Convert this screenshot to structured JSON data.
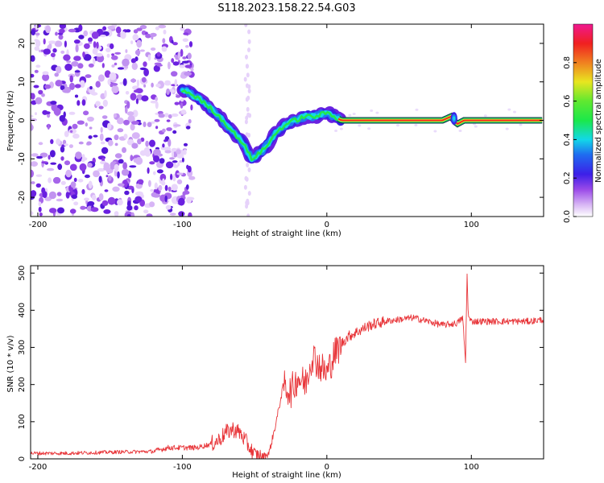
{
  "title": "S118.2023.158.22.54.G03",
  "chart_data": [
    {
      "type": "heatmap",
      "xlabel": "Height of straight line (km)",
      "ylabel": "Frequency (Hz)",
      "xlim": [
        -205,
        150
      ],
      "ylim": [
        -25,
        25
      ],
      "xticks": [
        -200,
        -100,
        0,
        100
      ],
      "yticks": [
        -20,
        -10,
        0,
        10,
        20
      ],
      "colorbar": {
        "label": "Normalized spectral amplitude",
        "range": [
          0,
          1
        ],
        "ticks": [
          "0.0",
          "0.2",
          "0.4",
          "0.6",
          "0.8"
        ]
      },
      "ridge_frequency": [
        [
          -100,
          8
        ],
        [
          -90,
          6
        ],
        [
          -80,
          3
        ],
        [
          -72,
          0
        ],
        [
          -65,
          -3
        ],
        [
          -58,
          -6
        ],
        [
          -52,
          -10
        ],
        [
          -45,
          -8
        ],
        [
          -40,
          -6
        ],
        [
          -35,
          -3
        ],
        [
          -28,
          -1
        ],
        [
          -22,
          0
        ],
        [
          -15,
          1
        ],
        [
          -8,
          1
        ],
        [
          0,
          2
        ],
        [
          5,
          1
        ],
        [
          10,
          0
        ],
        [
          20,
          0
        ],
        [
          40,
          0
        ],
        [
          60,
          0
        ],
        [
          80,
          0
        ],
        [
          86,
          1
        ],
        [
          90,
          -1
        ],
        [
          95,
          0
        ],
        [
          120,
          0
        ],
        [
          150,
          0
        ]
      ]
    },
    {
      "type": "line",
      "xlabel": "Height of straight line (km)",
      "ylabel": "SNR (10 * v/v)",
      "xlim": [
        -205,
        150
      ],
      "ylim": [
        0,
        520
      ],
      "xticks": [
        -200,
        -100,
        0,
        100
      ],
      "yticks": [
        0,
        100,
        200,
        300,
        400,
        500
      ],
      "color": "#e8363a",
      "series": [
        {
          "name": "",
          "x": [
            -205,
            -180,
            -150,
            -120,
            -110,
            -100,
            -90,
            -80,
            -75,
            -70,
            -65,
            -60,
            -55,
            -50,
            -45,
            -40,
            -35,
            -30,
            -25,
            -20,
            -15,
            -10,
            -5,
            0,
            5,
            10,
            15,
            20,
            25,
            30,
            35,
            40,
            50,
            60,
            70,
            80,
            90,
            94,
            96,
            97,
            98,
            100,
            110,
            120,
            130,
            140,
            150
          ],
          "y": [
            15,
            15,
            18,
            20,
            30,
            30,
            30,
            40,
            50,
            70,
            80,
            70,
            40,
            10,
            5,
            15,
            100,
            200,
            180,
            220,
            200,
            280,
            250,
            230,
            280,
            310,
            330,
            340,
            350,
            360,
            365,
            370,
            375,
            380,
            370,
            360,
            365,
            380,
            260,
            500,
            380,
            370,
            370,
            370,
            370,
            370,
            375
          ]
        }
      ]
    }
  ]
}
